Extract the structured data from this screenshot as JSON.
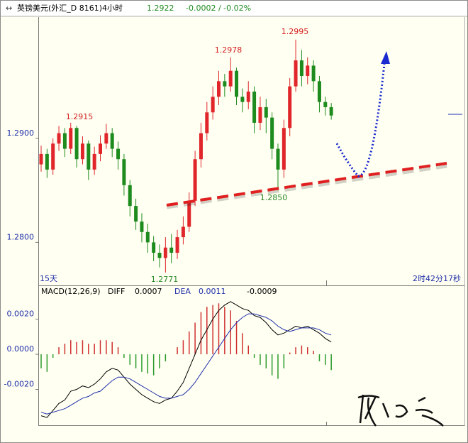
{
  "chart_data": [
    {
      "type": "candlestick",
      "title": "英镑美元(外汇_D 8161)4小时",
      "change_label": "-0.0002 / -0.02%",
      "period_label": "15天",
      "time_label": "2时42分17秒",
      "annotations": [
        "1.2915",
        "1.2978",
        "1.2995",
        "1.2850",
        "1.2771"
      ],
      "up_color": "#e0262b",
      "down_color": "#1e8b1e",
      "open": [
        1.2875,
        1.2885,
        1.287,
        1.2895,
        1.2905,
        1.289,
        1.291,
        1.288,
        1.2895,
        1.287,
        1.2885,
        1.2895,
        1.2905,
        1.289,
        1.288,
        1.2855,
        1.2835,
        1.282,
        1.281,
        1.28,
        1.279,
        1.2785,
        1.2795,
        1.279,
        1.2805,
        1.2815,
        1.284,
        1.288,
        1.2905,
        1.2925,
        1.294,
        1.2955,
        1.295,
        1.2965,
        1.294,
        1.2935,
        1.2945,
        1.2915,
        1.293,
        1.292,
        1.289,
        1.287,
        1.291,
        1.295,
        1.2975,
        1.296,
        1.297,
        1.2955,
        1.2935,
        1.293
      ],
      "high": [
        1.2893,
        1.289,
        1.29,
        1.2912,
        1.291,
        1.2915,
        1.2912,
        1.2902,
        1.2898,
        1.2892,
        1.2903,
        1.2914,
        1.291,
        1.2897,
        1.2885,
        1.286,
        1.2842,
        1.2828,
        1.2818,
        1.2806,
        1.2798,
        1.2805,
        1.2808,
        1.2812,
        1.2825,
        1.2848,
        1.2888,
        1.2915,
        1.2935,
        1.295,
        1.2965,
        1.2962,
        1.2978,
        1.2968,
        1.2948,
        1.2955,
        1.295,
        1.294,
        1.2938,
        1.2925,
        1.2895,
        1.2918,
        1.2958,
        1.2995,
        1.2985,
        1.2978,
        1.2975,
        1.296,
        1.294,
        1.2934
      ],
      "low": [
        1.2868,
        1.2862,
        1.2865,
        1.2888,
        1.2882,
        1.2885,
        1.2872,
        1.2875,
        1.286,
        1.2865,
        1.2878,
        1.289,
        1.2882,
        1.287,
        1.2845,
        1.2825,
        1.2812,
        1.28,
        1.279,
        1.2782,
        1.2776,
        1.2771,
        1.278,
        1.2784,
        1.2798,
        1.281,
        1.2835,
        1.2872,
        1.2898,
        1.2918,
        1.2932,
        1.294,
        1.2945,
        1.2932,
        1.2925,
        1.2928,
        1.2905,
        1.2908,
        1.2905,
        1.288,
        1.285,
        1.2862,
        1.2902,
        1.2945,
        1.295,
        1.2952,
        1.2945,
        1.2925,
        1.2922,
        1.2918
      ],
      "close": [
        1.2885,
        1.287,
        1.2895,
        1.2905,
        1.289,
        1.291,
        1.288,
        1.2895,
        1.287,
        1.2885,
        1.2895,
        1.2905,
        1.289,
        1.288,
        1.2855,
        1.2835,
        1.282,
        1.281,
        1.28,
        1.279,
        1.2785,
        1.2795,
        1.279,
        1.2805,
        1.2815,
        1.284,
        1.288,
        1.2905,
        1.2925,
        1.294,
        1.2955,
        1.295,
        1.2965,
        1.294,
        1.2935,
        1.2945,
        1.2915,
        1.293,
        1.292,
        1.289,
        1.287,
        1.291,
        1.295,
        1.2975,
        1.296,
        1.297,
        1.2955,
        1.2935,
        1.293,
        1.2922
      ],
      "ylim": [
        1.276,
        1.3016
      ],
      "yticks": [
        {
          "value": 1.29,
          "label": "1.2900"
        },
        {
          "value": 1.28,
          "label": "1.2800"
        }
      ]
    },
    {
      "type": "macd",
      "title": "MACD(12,26,9)",
      "series": [
        {
          "name": "DIFF",
          "color": "#000000",
          "values": [
            -0.0035,
            -0.0036,
            -0.0032,
            -0.0028,
            -0.0026,
            -0.0021,
            -0.002,
            -0.0018,
            -0.0019,
            -0.0017,
            -0.0014,
            -0.001,
            -0.0008,
            -0.0009,
            -0.0013,
            -0.0017,
            -0.002,
            -0.0023,
            -0.0025,
            -0.0027,
            -0.0028,
            -0.0026,
            -0.0025,
            -0.0021,
            -0.0016,
            -0.0008,
            0,
            0.0008,
            0.0014,
            0.002,
            0.0025,
            0.0028,
            0.003,
            0.0028,
            0.0026,
            0.0025,
            0.0022,
            0.0021,
            0.0018,
            0.0014,
            0.0011,
            0.0012,
            0.0014,
            0.0016,
            0.0015,
            0.0016,
            0.0014,
            0.0012,
            0.0009,
            0.0007
          ]
        },
        {
          "name": "DEA",
          "color": "#1f2fa8",
          "values": [
            -0.0033,
            -0.0034,
            -0.0033,
            -0.0032,
            -0.0031,
            -0.0029,
            -0.0027,
            -0.0025,
            -0.0024,
            -0.0022,
            -0.0021,
            -0.0018,
            -0.0015,
            -0.0013,
            -0.0013,
            -0.0014,
            -0.0016,
            -0.0018,
            -0.002,
            -0.0022,
            -0.0024,
            -0.0025,
            -0.0025,
            -0.0024,
            -0.0023,
            -0.002,
            -0.0016,
            -0.0011,
            -0.0006,
            -0.0001,
            0.0004,
            0.0009,
            0.0014,
            0.0018,
            0.0021,
            0.0023,
            0.0023,
            0.0022,
            0.0021,
            0.0019,
            0.0016,
            0.0014,
            0.0013,
            0.0014,
            0.0015,
            0.0015,
            0.0015,
            0.0014,
            0.0012,
            0.0011
          ]
        }
      ],
      "histogram": {
        "up_color": "#d03030",
        "down_color": "#2a9a2a",
        "values": [
          -0.0008,
          -0.001,
          -0.0002,
          0.0004,
          0.0006,
          0.0008,
          0.0007,
          0.0008,
          0.0006,
          0.0006,
          0.0008,
          0.0008,
          0.0007,
          0.0004,
          -0.0002,
          -0.0006,
          -0.0008,
          -0.001,
          -0.0011,
          -0.0012,
          -0.0008,
          -0.0004,
          0,
          0.0004,
          0.0008,
          0.0013,
          0.0018,
          0.0024,
          0.0027,
          0.0028,
          0.0029,
          0.0027,
          0.0025,
          0.0019,
          0.0012,
          0.0005,
          -0.0002,
          -0.0006,
          -0.0008,
          -0.0012,
          -0.0014,
          -0.0008,
          0.0001,
          0.0004,
          0.0005,
          0.0004,
          0.0002,
          -0.0004,
          -0.0006,
          -0.0009
        ]
      },
      "ylim": [
        -0.004,
        0.0038
      ],
      "yticks": [
        {
          "value": 0.002,
          "label": "0.0020"
        },
        {
          "value": 0,
          "label": "0.0000"
        },
        {
          "value": -0.002,
          "label": "-0.0020"
        }
      ]
    }
  ]
}
